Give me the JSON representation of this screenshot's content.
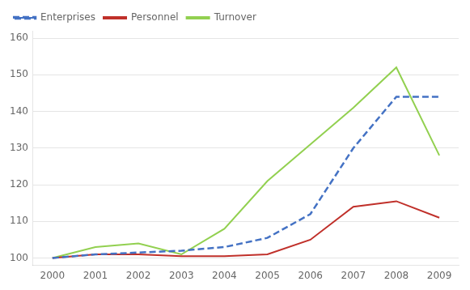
{
  "chart_data": {
    "type": "line",
    "x": [
      2000,
      2001,
      2002,
      2003,
      2004,
      2005,
      2006,
      2007,
      2008,
      2009
    ],
    "series": [
      {
        "name": "Enterprises",
        "color": "#4472c4",
        "line_style": "dashed",
        "values": [
          100,
          101,
          101.5,
          102,
          103,
          105.5,
          112,
          130,
          144,
          144
        ]
      },
      {
        "name": "Personnel",
        "color": "#c0302a",
        "line_style": "solid",
        "values": [
          100,
          101,
          101,
          100.5,
          100.5,
          101,
          105,
          114,
          115.5,
          111
        ]
      },
      {
        "name": "Turnover",
        "color": "#92d050",
        "line_style": "solid",
        "values": [
          100,
          103,
          104,
          101,
          108,
          121,
          131,
          141,
          152,
          128
        ]
      }
    ],
    "xlim": [
      1999.55,
      2009.45
    ],
    "xticks": [
      2000,
      2001,
      2002,
      2003,
      2004,
      2005,
      2006,
      2007,
      2008,
      2009
    ],
    "ylim": [
      98,
      162
    ],
    "yticks": [
      100,
      110,
      120,
      130,
      140,
      150,
      160
    ],
    "grid": "y",
    "legend": "upper left"
  }
}
